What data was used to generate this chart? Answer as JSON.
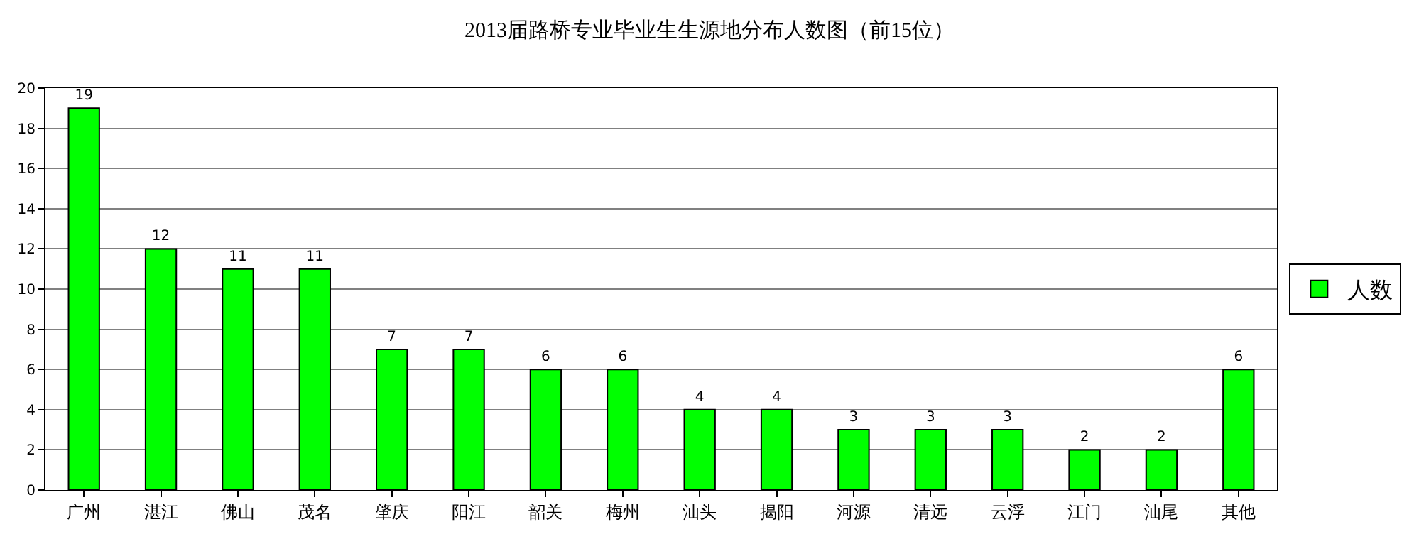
{
  "chart_data": {
    "type": "bar",
    "title": "2013届路桥专业毕业生生源地分布人数图（前15位）",
    "categories": [
      "广州",
      "湛江",
      "佛山",
      "茂名",
      "肇庆",
      "阳江",
      "韶关",
      "梅州",
      "汕头",
      "揭阳",
      "河源",
      "清远",
      "云浮",
      "江门",
      "汕尾",
      "其他"
    ],
    "series": [
      {
        "name": "人数",
        "color": "#00ff00",
        "values": [
          19,
          12,
          11,
          11,
          7,
          7,
          6,
          6,
          4,
          4,
          3,
          3,
          3,
          2,
          2,
          6
        ]
      }
    ],
    "ylim": [
      0,
      20
    ],
    "yticks": [
      0,
      2,
      4,
      6,
      8,
      10,
      12,
      14,
      16,
      18,
      20
    ],
    "grid": "y",
    "legend": "right",
    "data_labels": true
  }
}
